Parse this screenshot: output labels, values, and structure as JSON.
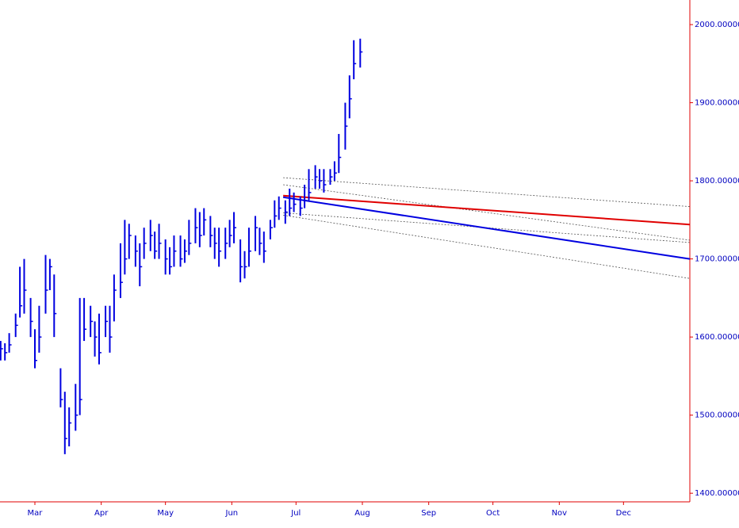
{
  "chart_data": {
    "type": "hlc",
    "bar_color": "#0000e0",
    "axis_color": "#e00000",
    "x": [
      44,
      46,
      48,
      51,
      53,
      55,
      58,
      60,
      62,
      65,
      67,
      69,
      72,
      74,
      76,
      79,
      81,
      83,
      86,
      88,
      90,
      93,
      95,
      97,
      100,
      102,
      104,
      107,
      109,
      111,
      114,
      116,
      118,
      121,
      123,
      125,
      128,
      130,
      132,
      135,
      137,
      139,
      142,
      144,
      146,
      149,
      151,
      153,
      156,
      158,
      160,
      163,
      165,
      167,
      170,
      172,
      174,
      177,
      179,
      181,
      184,
      186,
      188,
      191,
      193,
      195,
      198,
      200,
      202,
      205,
      207,
      209,
      212
    ],
    "high": [
      1595,
      1592,
      1605,
      1630,
      1690,
      1700,
      1650,
      1610,
      1640,
      1705,
      1700,
      1680,
      1560,
      1530,
      1510,
      1540,
      1650,
      1650,
      1640,
      1620,
      1630,
      1640,
      1640,
      1680,
      1720,
      1750,
      1745,
      1730,
      1720,
      1740,
      1750,
      1735,
      1745,
      1725,
      1715,
      1730,
      1730,
      1725,
      1750,
      1765,
      1760,
      1765,
      1755,
      1740,
      1740,
      1740,
      1750,
      1760,
      1725,
      1710,
      1740,
      1755,
      1740,
      1735,
      1750,
      1775,
      1780,
      1775,
      1790,
      1785,
      1780,
      1795,
      1815,
      1820,
      1815,
      1815,
      1815,
      1825,
      1860,
      1900,
      1935,
      1980,
      1982
    ],
    "low": [
      1570,
      1570,
      1580,
      1600,
      1625,
      1630,
      1600,
      1560,
      1580,
      1630,
      1660,
      1600,
      1510,
      1450,
      1460,
      1480,
      1500,
      1595,
      1600,
      1575,
      1565,
      1600,
      1580,
      1620,
      1650,
      1680,
      1700,
      1690,
      1665,
      1700,
      1710,
      1700,
      1700,
      1680,
      1680,
      1690,
      1690,
      1695,
      1705,
      1720,
      1715,
      1730,
      1715,
      1700,
      1690,
      1700,
      1715,
      1720,
      1670,
      1675,
      1690,
      1710,
      1705,
      1695,
      1725,
      1740,
      1750,
      1745,
      1755,
      1760,
      1755,
      1765,
      1775,
      1790,
      1790,
      1785,
      1795,
      1800,
      1810,
      1840,
      1880,
      1930,
      1945
    ],
    "close": [
      1585,
      1580,
      1590,
      1615,
      1640,
      1660,
      1620,
      1570,
      1600,
      1660,
      1690,
      1630,
      1520,
      1470,
      1490,
      1500,
      1520,
      1610,
      1620,
      1600,
      1580,
      1620,
      1600,
      1660,
      1670,
      1700,
      1730,
      1710,
      1690,
      1720,
      1730,
      1710,
      1720,
      1700,
      1690,
      1710,
      1700,
      1710,
      1720,
      1740,
      1730,
      1750,
      1730,
      1720,
      1710,
      1720,
      1730,
      1740,
      1690,
      1690,
      1710,
      1740,
      1720,
      1710,
      1740,
      1755,
      1765,
      1760,
      1765,
      1770,
      1765,
      1775,
      1785,
      1805,
      1800,
      1795,
      1805,
      1810,
      1830,
      1870,
      1905,
      1950,
      1965
    ],
    "lines": [
      {
        "x": [
          176,
          366
        ],
        "y": [
          1804,
          1767
        ],
        "color": "#555555",
        "dashed": true
      },
      {
        "x": [
          176,
          366
        ],
        "y": [
          1795,
          1724
        ],
        "color": "#555555",
        "dashed": true
      },
      {
        "x": [
          176,
          366
        ],
        "y": [
          1759,
          1721
        ],
        "color": "#555555",
        "dashed": true
      },
      {
        "x": [
          176,
          366
        ],
        "y": [
          1756,
          1675
        ],
        "color": "#555555",
        "dashed": true
      },
      {
        "x": [
          176,
          366
        ],
        "y": [
          1781,
          1744
        ],
        "color": "#e00000",
        "dashed": false
      },
      {
        "x": [
          176,
          366
        ],
        "y": [
          1779,
          1700
        ],
        "color": "#0000e0",
        "dashed": false
      }
    ],
    "xlim": [
      43.7,
      366
    ],
    "xticks": [
      {
        "value": 60,
        "label": "Mar"
      },
      {
        "value": 91,
        "label": "Apr"
      },
      {
        "value": 121,
        "label": "May"
      },
      {
        "value": 152,
        "label": "Jun"
      },
      {
        "value": 182,
        "label": "Jul"
      },
      {
        "value": 213,
        "label": "Aug"
      },
      {
        "value": 244,
        "label": "Sep"
      },
      {
        "value": 274,
        "label": "Oct"
      },
      {
        "value": 305,
        "label": "Nov"
      },
      {
        "value": 335,
        "label": "Dec"
      }
    ],
    "ylim": [
      1389,
      2031.5
    ],
    "yticks": [
      {
        "value": 1400,
        "label": "1400.00000"
      },
      {
        "value": 1500,
        "label": "1500.00000"
      },
      {
        "value": 1600,
        "label": "1600.00000"
      },
      {
        "value": 1700,
        "label": "1700.00000"
      },
      {
        "value": 1800,
        "label": "1800.00000"
      },
      {
        "value": 1900,
        "label": "1900.00000"
      },
      {
        "value": 2000,
        "label": "2000.00000"
      }
    ]
  }
}
